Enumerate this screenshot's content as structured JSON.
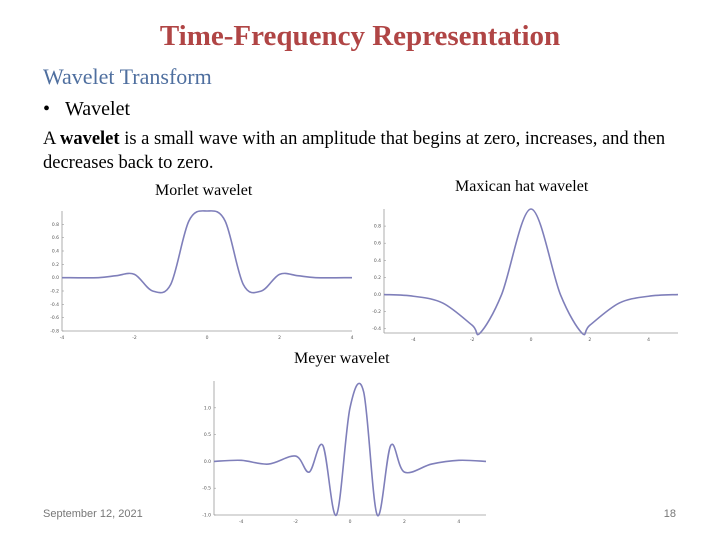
{
  "slide": {
    "title": "Time-Frequency Representation",
    "subtitle": "Wavelet Transform",
    "bullet": "Wavelet",
    "definition": {
      "pre": "A ",
      "bold": "wavelet",
      "post": " is a small wave with an amplitude that begins at zero, increases, and then decreases back to zero."
    },
    "footer_date": "September 12, 2021",
    "page_number": "18"
  },
  "colors": {
    "title": "#b04545",
    "subtitle": "#4f6f9f",
    "curve": "#7f7fba"
  },
  "chart_data": [
    {
      "type": "line",
      "title": "Morlet wavelet",
      "x_ticks": [
        "-4",
        "-2",
        "0",
        "2",
        "4"
      ],
      "y_ticks": [
        "0.8",
        "0.6",
        "0.4",
        "0.2",
        "0.0",
        "-0.2",
        "-0.4",
        "-0.6",
        "-0.8"
      ],
      "xlim": [
        -4,
        4
      ],
      "ylim": [
        -0.8,
        1.0
      ],
      "series": [
        {
          "x": [
            -4,
            -3,
            -2.5,
            -2,
            -1.5,
            -1,
            -0.5,
            0,
            0.5,
            1,
            1.5,
            2,
            2.5,
            3,
            4
          ],
          "y": [
            0,
            0,
            0.03,
            0.05,
            -0.2,
            -0.1,
            0.85,
            1.0,
            0.85,
            -0.1,
            -0.2,
            0.05,
            0.03,
            0,
            0
          ]
        }
      ]
    },
    {
      "type": "line",
      "title": "Maxican hat wavelet",
      "x_ticks": [
        "-4",
        "-2",
        "0",
        "2",
        "4"
      ],
      "y_ticks": [
        "0.8",
        "0.6",
        "0.4",
        "0.2",
        "0.0",
        "-0.2",
        "-0.4"
      ],
      "xlim": [
        -5,
        5
      ],
      "ylim": [
        -0.45,
        1.0
      ],
      "series": [
        {
          "x": [
            -5,
            -4,
            -3,
            -2,
            -1.73,
            -1,
            0,
            1,
            1.73,
            2,
            3,
            4,
            5
          ],
          "y": [
            -0.0,
            -0.02,
            -0.1,
            -0.36,
            -0.45,
            0,
            1.0,
            0,
            -0.45,
            -0.36,
            -0.1,
            -0.02,
            -0.0
          ]
        }
      ]
    },
    {
      "type": "line",
      "title": "Meyer wavelet",
      "x_ticks": [
        "-4",
        "-2",
        "0",
        "2",
        "4"
      ],
      "y_ticks": [
        "1.0",
        "0.5",
        "0.0",
        "-0.5",
        "-1.0"
      ],
      "xlim": [
        -5,
        5
      ],
      "ylim": [
        -1.0,
        1.5
      ],
      "series": [
        {
          "x": [
            -5,
            -4,
            -3,
            -2,
            -1.5,
            -1,
            -0.5,
            0,
            0.5,
            1,
            1.5,
            2,
            3,
            4,
            5
          ],
          "y": [
            0,
            0.02,
            -0.05,
            0.1,
            -0.2,
            0.3,
            -1.0,
            1.0,
            1.3,
            -1.0,
            0.3,
            -0.2,
            -0.05,
            0.02,
            0
          ]
        }
      ]
    }
  ]
}
